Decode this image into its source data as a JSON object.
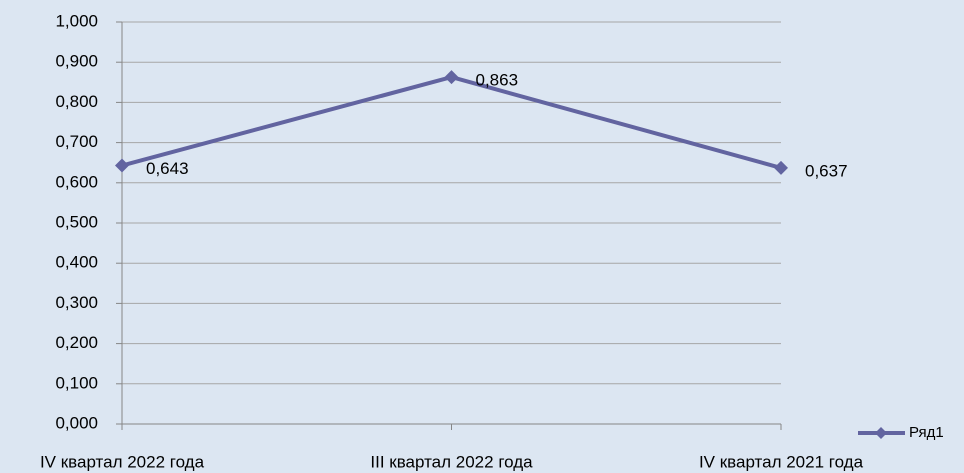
{
  "chart_data": {
    "type": "line",
    "categories": [
      "IV квартал 2022 года",
      "III квартал 2022 года",
      "IV квартал 2021 года"
    ],
    "series": [
      {
        "name": "Ряд1",
        "color": "#6264a0",
        "values": [
          0.643,
          0.863,
          0.637
        ],
        "value_labels": [
          "0,643",
          "0,863",
          "0,637"
        ]
      }
    ],
    "ylim": [
      0,
      1
    ],
    "yticks": [
      {
        "value": 0,
        "label": "0,000"
      },
      {
        "value": 0.1,
        "label": "0,100"
      },
      {
        "value": 0.2,
        "label": "0,200"
      },
      {
        "value": 0.3,
        "label": "0,300"
      },
      {
        "value": 0.4,
        "label": "0,400"
      },
      {
        "value": 0.5,
        "label": "0,500"
      },
      {
        "value": 0.6,
        "label": "0,600"
      },
      {
        "value": 0.7,
        "label": "0,700"
      },
      {
        "value": 0.8,
        "label": "0,800"
      },
      {
        "value": 0.9,
        "label": "0,900"
      },
      {
        "value": 1,
        "label": "1,000"
      }
    ],
    "grid": true,
    "legend": "bottom-right"
  }
}
